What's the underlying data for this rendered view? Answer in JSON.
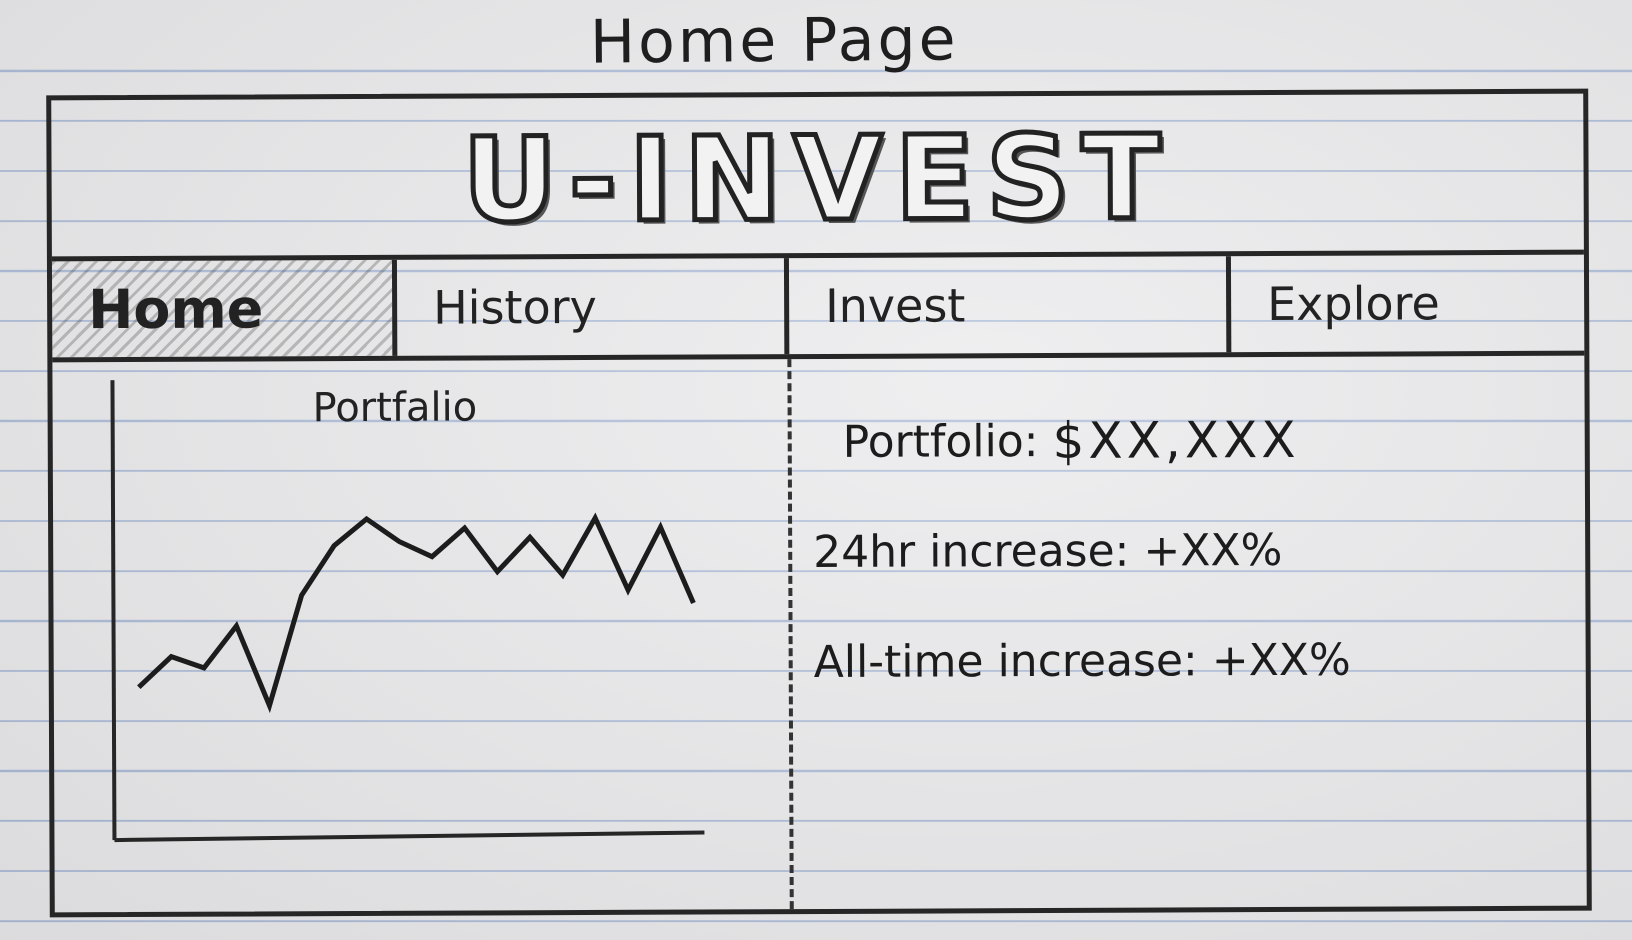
{
  "sketch_title": "Home Page",
  "header": {
    "logo": "U-INVEST"
  },
  "nav": {
    "tabs": [
      {
        "label": "Home",
        "active": true
      },
      {
        "label": "History",
        "active": false
      },
      {
        "label": "Invest",
        "active": false
      },
      {
        "label": "Explore",
        "active": false
      }
    ]
  },
  "left_panel": {
    "chart_title": "Portfalio",
    "chart_data": {
      "type": "line",
      "series": [
        {
          "values": [
            0.12,
            0.28,
            0.22,
            0.44,
            0.02,
            0.6,
            0.86,
            1.0,
            0.88,
            0.8,
            0.95,
            0.72,
            0.9,
            0.7,
            1.0,
            0.62,
            0.95,
            0.55
          ]
        }
      ]
    }
  },
  "right_panel": {
    "portfolio_label": "Portfolio:",
    "portfolio_value": "$XX,XXX",
    "day_label": "24hr increase:",
    "day_value": "+XX%",
    "alltime_label": "All-time increase:",
    "alltime_value": "+XX%"
  },
  "colors": {
    "ink": "#262626",
    "paper": "#e9e9eb",
    "rule_line": "#a9b9d6"
  }
}
